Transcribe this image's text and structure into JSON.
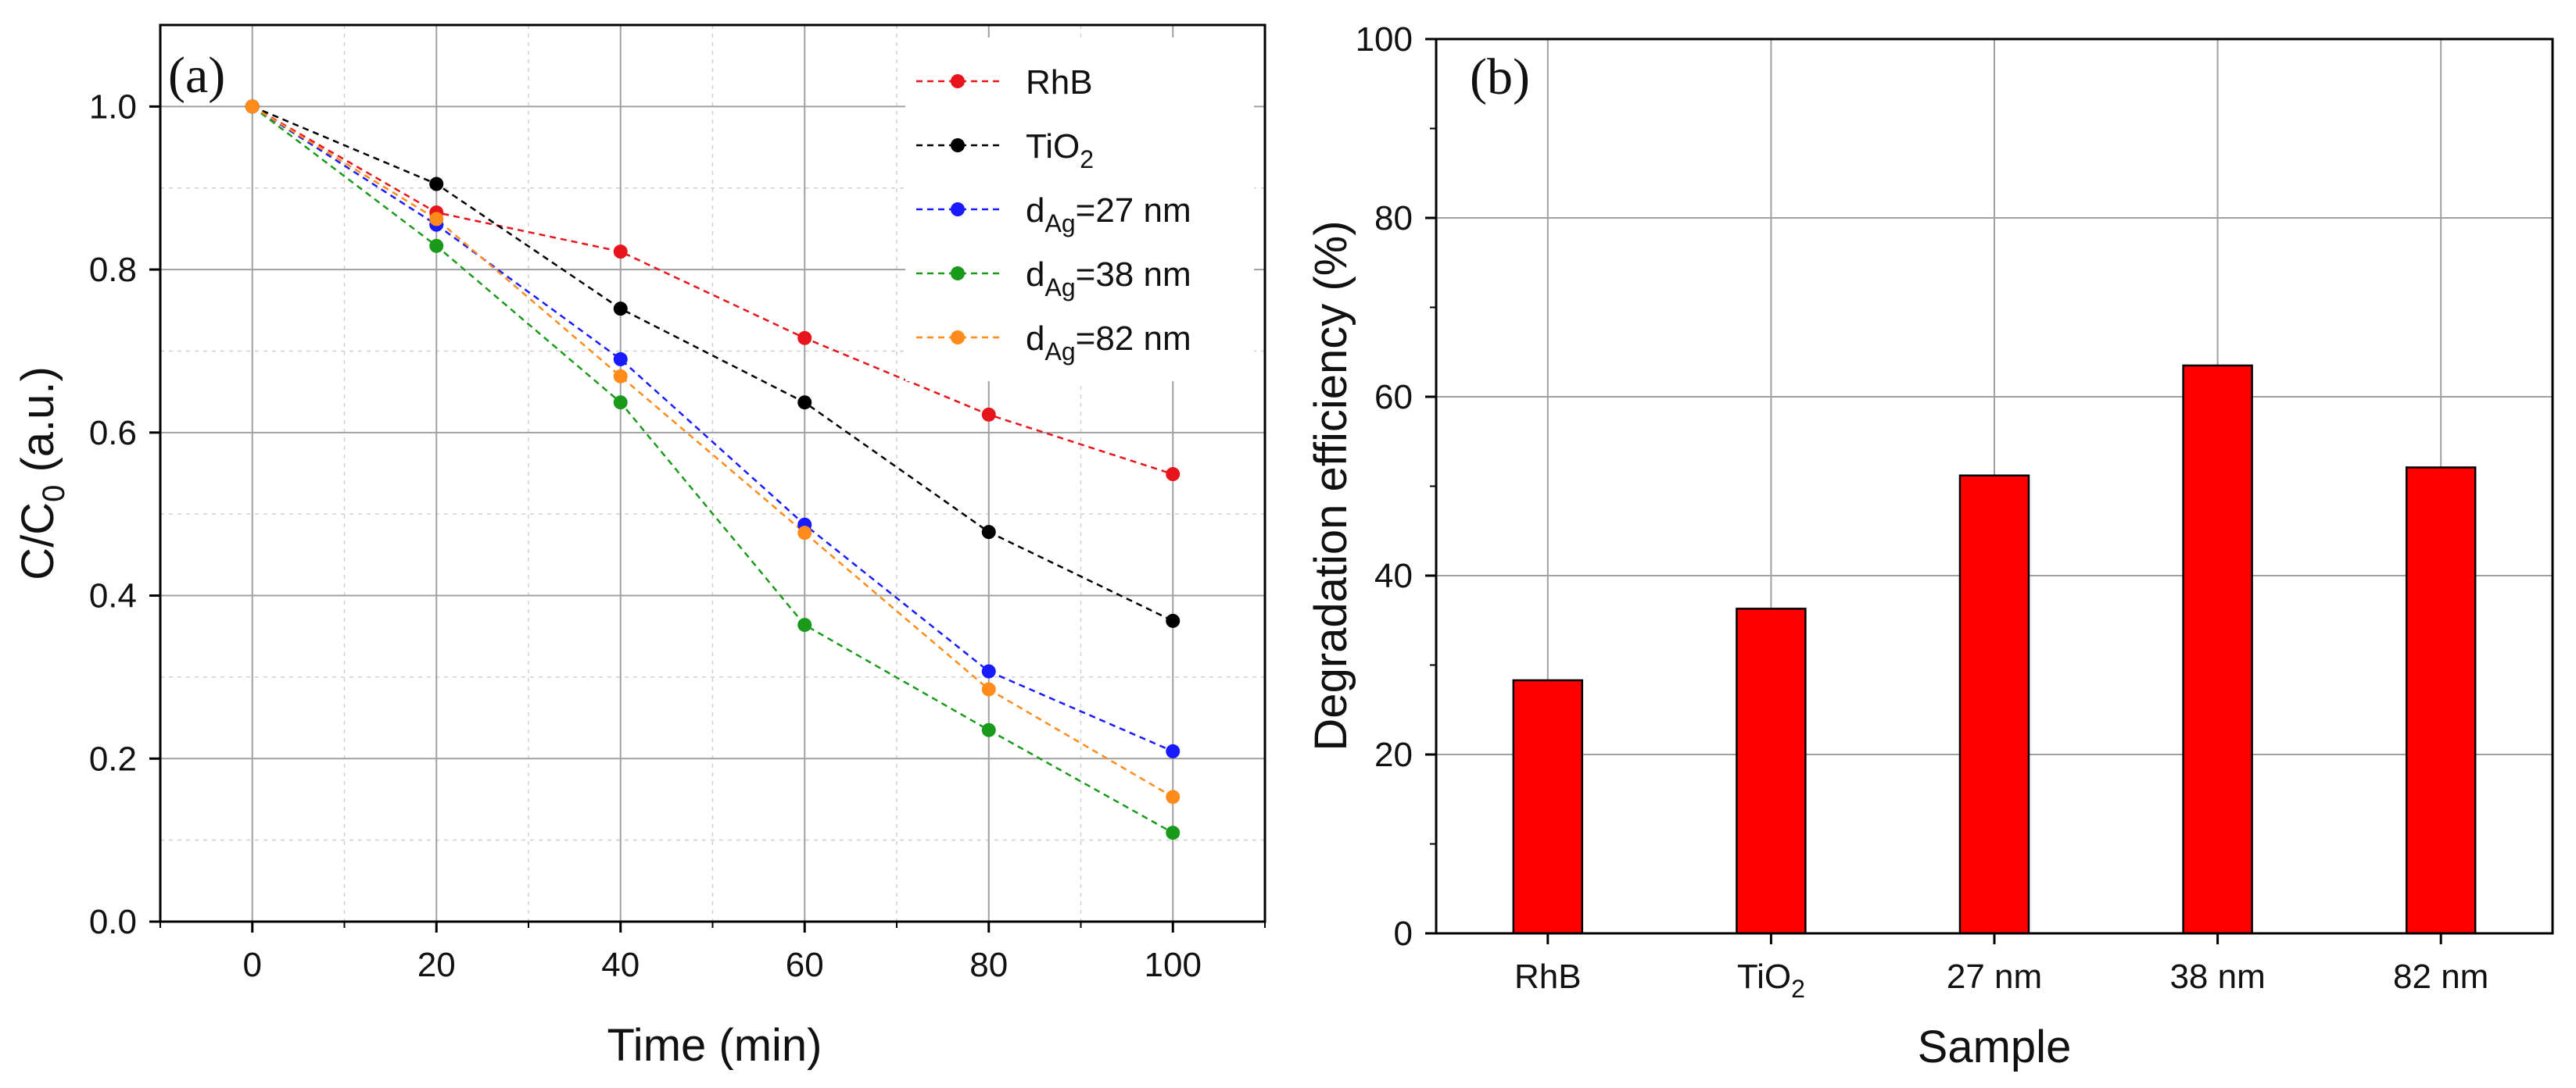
{
  "chart_data": [
    {
      "type": "line",
      "panel_label": "(a)",
      "xlabel": "Time (min)",
      "ylabel_main": "C/C",
      "ylabel_sub": "0",
      "ylabel_suffix": " (a.u.)",
      "xlim": [
        -10,
        110
      ],
      "ylim": [
        0,
        1.1
      ],
      "xticks": [
        0,
        20,
        40,
        60,
        80,
        100
      ],
      "yticks": [
        0.0,
        0.2,
        0.4,
        0.6,
        0.8,
        1.0
      ],
      "ytick_labels": [
        "0.0",
        "0.2",
        "0.4",
        "0.6",
        "0.8",
        "1.0"
      ],
      "grid": true,
      "legend_position": "top-right",
      "x": [
        0,
        20,
        40,
        60,
        80,
        100
      ],
      "series": [
        {
          "name": "RhB",
          "label_main": "RhB",
          "label_sub": "",
          "label_suffix": "",
          "color": "#e8141c",
          "values": [
            1.0,
            0.87,
            0.822,
            0.716,
            0.622,
            0.549
          ]
        },
        {
          "name": "TiO2",
          "label_main": "TiO",
          "label_sub": "2",
          "label_suffix": "",
          "color": "#000000",
          "values": [
            1.0,
            0.905,
            0.752,
            0.637,
            0.478,
            0.369
          ]
        },
        {
          "name": "dAg=27 nm",
          "label_main": "d",
          "label_sub": "Ag",
          "label_suffix": "=27 nm",
          "color": "#1a1aff",
          "values": [
            1.0,
            0.855,
            0.69,
            0.487,
            0.307,
            0.209
          ]
        },
        {
          "name": "dAg=38 nm",
          "label_main": "d",
          "label_sub": "Ag",
          "label_suffix": "=38 nm",
          "color": "#1a9a1a",
          "values": [
            1.0,
            0.829,
            0.637,
            0.364,
            0.235,
            0.109
          ]
        },
        {
          "name": "dAg=82 nm",
          "label_main": "d",
          "label_sub": "Ag",
          "label_suffix": "=82 nm",
          "color": "#ff8c1a",
          "values": [
            1.0,
            0.862,
            0.669,
            0.477,
            0.285,
            0.153
          ]
        }
      ]
    },
    {
      "type": "bar",
      "panel_label": "(b)",
      "xlabel": "Sample",
      "ylabel": "Degradation efficiency (%)",
      "ylim": [
        0,
        100
      ],
      "yticks": [
        0,
        20,
        40,
        60,
        80,
        100
      ],
      "grid": true,
      "bar_color": "#ff0000",
      "categories": [
        {
          "main": "RhB",
          "sub": ""
        },
        {
          "main": "TiO",
          "sub": "2"
        },
        {
          "main": "27 nm",
          "sub": ""
        },
        {
          "main": "38 nm",
          "sub": ""
        },
        {
          "main": "82 nm",
          "sub": ""
        }
      ],
      "values": [
        28.3,
        36.3,
        51.2,
        63.5,
        52.1
      ]
    }
  ]
}
